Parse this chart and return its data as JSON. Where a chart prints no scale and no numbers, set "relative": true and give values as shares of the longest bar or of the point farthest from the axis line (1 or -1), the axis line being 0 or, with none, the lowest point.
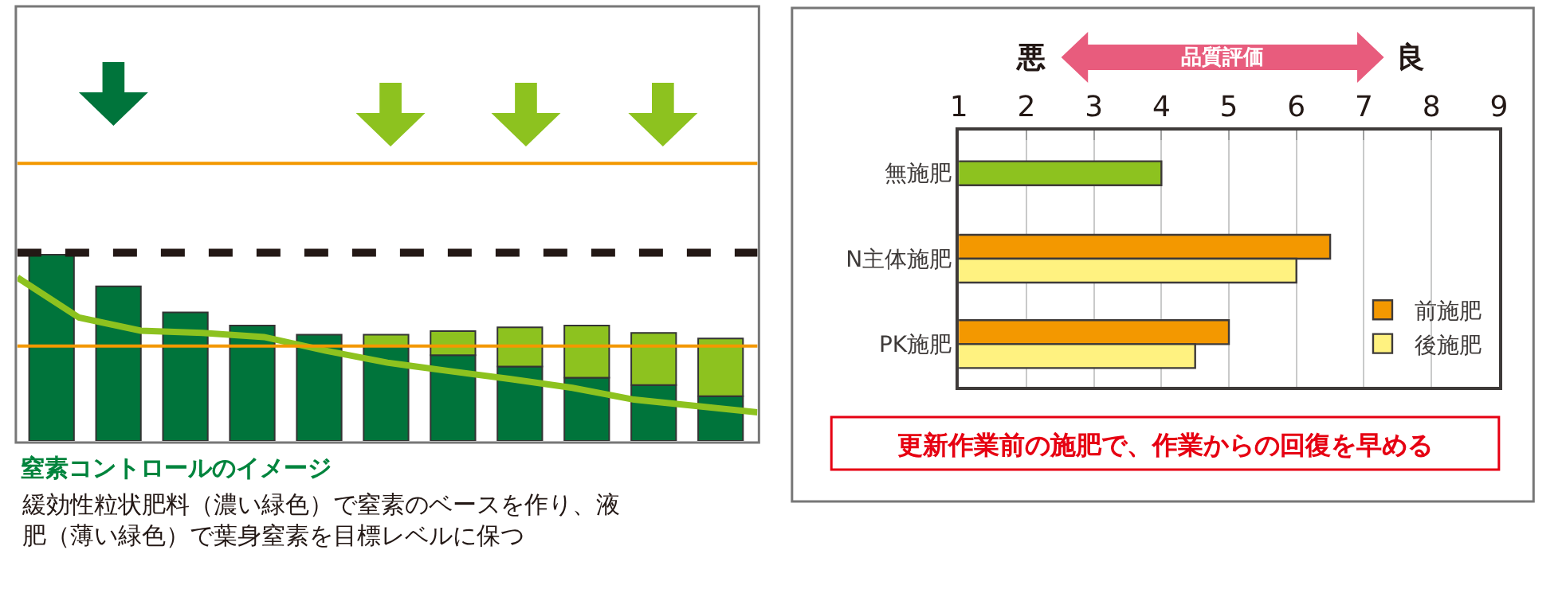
{
  "chart_data": [
    {
      "type": "bar",
      "stacked": true,
      "relative": true,
      "title": "窒素コントロールのイメージ",
      "subtitle": "緩効性粒状肥料（濃い緑色）で窒素のベースを作り、液肥（薄い緑色）で葉身窒素を目標レベルに保つ",
      "categories": [
        null,
        null,
        null,
        null,
        null,
        null,
        null,
        null,
        null,
        null,
        null
      ],
      "series": [
        {
          "color": "#00743b",
          "values": [
            1.0,
            0.83,
            0.69,
            0.62,
            0.57,
            0.51,
            0.46,
            0.4,
            0.34,
            0.3,
            0.24
          ]
        },
        {
          "color": "#8dc21f",
          "values": [
            null,
            null,
            null,
            null,
            null,
            0.06,
            0.13,
            0.21,
            0.28,
            0.28,
            0.31
          ]
        }
      ],
      "ref_lines": [
        {
          "axis": "y",
          "value": 1.49,
          "color": "#f39800"
        },
        {
          "axis": "y",
          "value": 1.01,
          "color": "#231815",
          "line_style": "dashed"
        },
        {
          "axis": "y",
          "value": 0.51,
          "color": "#f39800"
        }
      ]
    },
    {
      "type": "line",
      "relative": true,
      "categories": [
        null,
        null,
        null,
        null,
        null,
        null,
        null,
        null,
        null,
        null,
        null,
        null,
        null
      ],
      "series": [
        {
          "color": "#8dc21f",
          "values": [
            1.0,
            0.755,
            0.675,
            0.661,
            0.636,
            0.552,
            0.479,
            0.428,
            0.379,
            0.325,
            0.253,
            0.214,
            0.175
          ]
        }
      ]
    },
    {
      "type": "bar",
      "orientation": "horizontal",
      "categories": [
        "無施肥",
        "N主体施肥",
        "PK施肥"
      ],
      "series": [
        {
          "color": "#8dc21f",
          "values": [
            4,
            null,
            null
          ]
        },
        {
          "name": "前施肥",
          "color": "#f39800",
          "values": [
            null,
            6.5,
            5
          ]
        },
        {
          "name": "後施肥",
          "color": "#fff280",
          "values": [
            null,
            6,
            4.5
          ]
        }
      ],
      "xlim": [
        1,
        9
      ],
      "xticks": [
        1,
        2,
        3,
        4,
        5,
        6,
        7,
        8,
        9
      ],
      "grid": "x",
      "legend": "bottom right",
      "annotations": [
        "悪",
        "品質評価",
        "良",
        "更新作業前の施肥で、作業からの回復を早める"
      ]
    }
  ]
}
